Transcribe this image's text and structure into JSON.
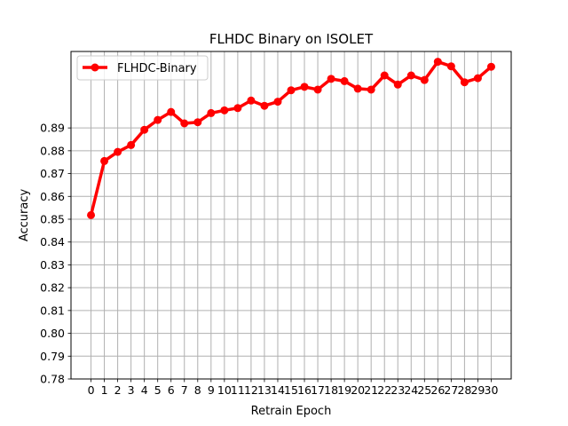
{
  "chart_data": {
    "type": "line",
    "title": "FLHDC Binary on ISOLET",
    "xlabel": "Retrain Epoch",
    "ylabel": "Accuracy",
    "x": [
      0,
      1,
      2,
      3,
      4,
      5,
      6,
      7,
      8,
      9,
      10,
      11,
      12,
      13,
      14,
      15,
      16,
      17,
      18,
      19,
      20,
      21,
      22,
      23,
      24,
      25,
      26,
      27,
      28,
      29,
      30
    ],
    "series": [
      {
        "name": "FLHDC-Binary",
        "color": "#ff0000",
        "values": [
          0.8518,
          0.8755,
          0.8795,
          0.8825,
          0.8892,
          0.8935,
          0.897,
          0.892,
          0.8925,
          0.8965,
          0.8977,
          0.8987,
          0.902,
          0.8997,
          0.9015,
          0.9065,
          0.908,
          0.9068,
          0.9115,
          0.9105,
          0.9072,
          0.9068,
          0.913,
          0.909,
          0.913,
          0.911,
          0.919,
          0.917,
          0.91,
          0.9118,
          0.9168
        ]
      }
    ],
    "yticks": [
      "0.78",
      "0.79",
      "0.80",
      "0.81",
      "0.82",
      "0.83",
      "0.84",
      "0.85",
      "0.86",
      "0.87",
      "0.88",
      "0.89"
    ],
    "xticks": [
      "0",
      "1",
      "2",
      "3",
      "4",
      "5",
      "6",
      "7",
      "8",
      "9",
      "10",
      "11",
      "12",
      "13",
      "14",
      "15",
      "16",
      "17",
      "18",
      "19",
      "20",
      "21",
      "22",
      "23",
      "24",
      "25",
      "26",
      "27",
      "28",
      "29",
      "30"
    ],
    "ylim": [
      0.78,
      0.9235
    ],
    "xlim": [
      -1.5,
      31.5
    ],
    "grid": true,
    "legend": "top-left"
  }
}
